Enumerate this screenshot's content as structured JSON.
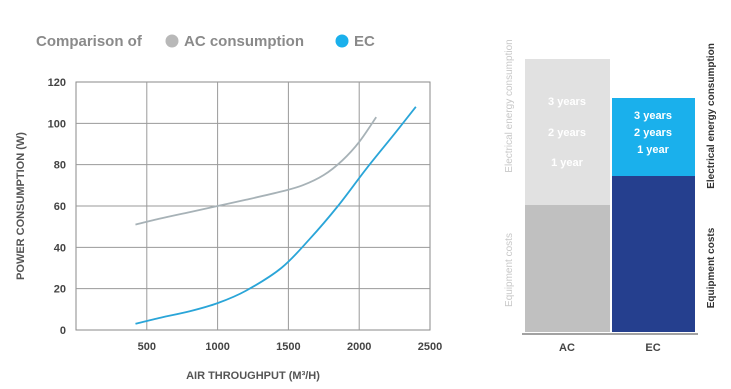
{
  "chart_data": [
    {
      "type": "line",
      "title": {
        "prefix": "Comparison of",
        "legend_ac": "AC consumption",
        "legend_ec": "EC"
      },
      "xlabel": "AIR THROUGHPUT (M³/H)",
      "ylabel": "POWER CONSUMPTION (W)",
      "xlim": [
        0,
        2500
      ],
      "ylim": [
        0,
        120
      ],
      "x_ticks": [
        500,
        1000,
        1500,
        2000,
        2500
      ],
      "y_ticks": [
        0,
        20,
        40,
        60,
        80,
        100,
        120
      ],
      "grid": true,
      "series": [
        {
          "name": "AC consumption",
          "color": "#a7b2b7",
          "x": [
            420,
            600,
            800,
            1000,
            1200,
            1450,
            1600,
            1750,
            1880,
            2000,
            2120
          ],
          "y": [
            51,
            54,
            57,
            60,
            63,
            67,
            70,
            75,
            82,
            91,
            103
          ]
        },
        {
          "name": "EC",
          "color": "#2aa5d8",
          "x": [
            420,
            600,
            800,
            1000,
            1200,
            1450,
            1650,
            1850,
            2050,
            2250,
            2400
          ],
          "y": [
            3,
            6,
            9,
            13,
            19,
            30,
            44,
            60,
            78,
            95,
            108
          ]
        }
      ]
    },
    {
      "type": "bar",
      "stacked": true,
      "categories": [
        "AC",
        "EC"
      ],
      "series": [
        {
          "name": "Equipment costs",
          "values": [
            61,
            74
          ],
          "colors": [
            "#c0c0c0",
            "#253f8e"
          ]
        },
        {
          "name": "Electrical energy consumption",
          "values": [
            68,
            39
          ],
          "colors": [
            "#e1e1e1",
            "#1ab0ec"
          ],
          "segment_labels": {
            "AC": [
              "3 years",
              "2 years",
              "1 year"
            ],
            "EC": [
              "3 years",
              "2 years",
              "1 year"
            ]
          }
        }
      ],
      "side_labels": {
        "left_top": "Electrical energy consumption",
        "left_bottom": "Equipment costs",
        "right_top": "Electrical energy consumption",
        "right_bottom": "Equipment costs"
      },
      "ylim": [
        0,
        145
      ]
    }
  ]
}
